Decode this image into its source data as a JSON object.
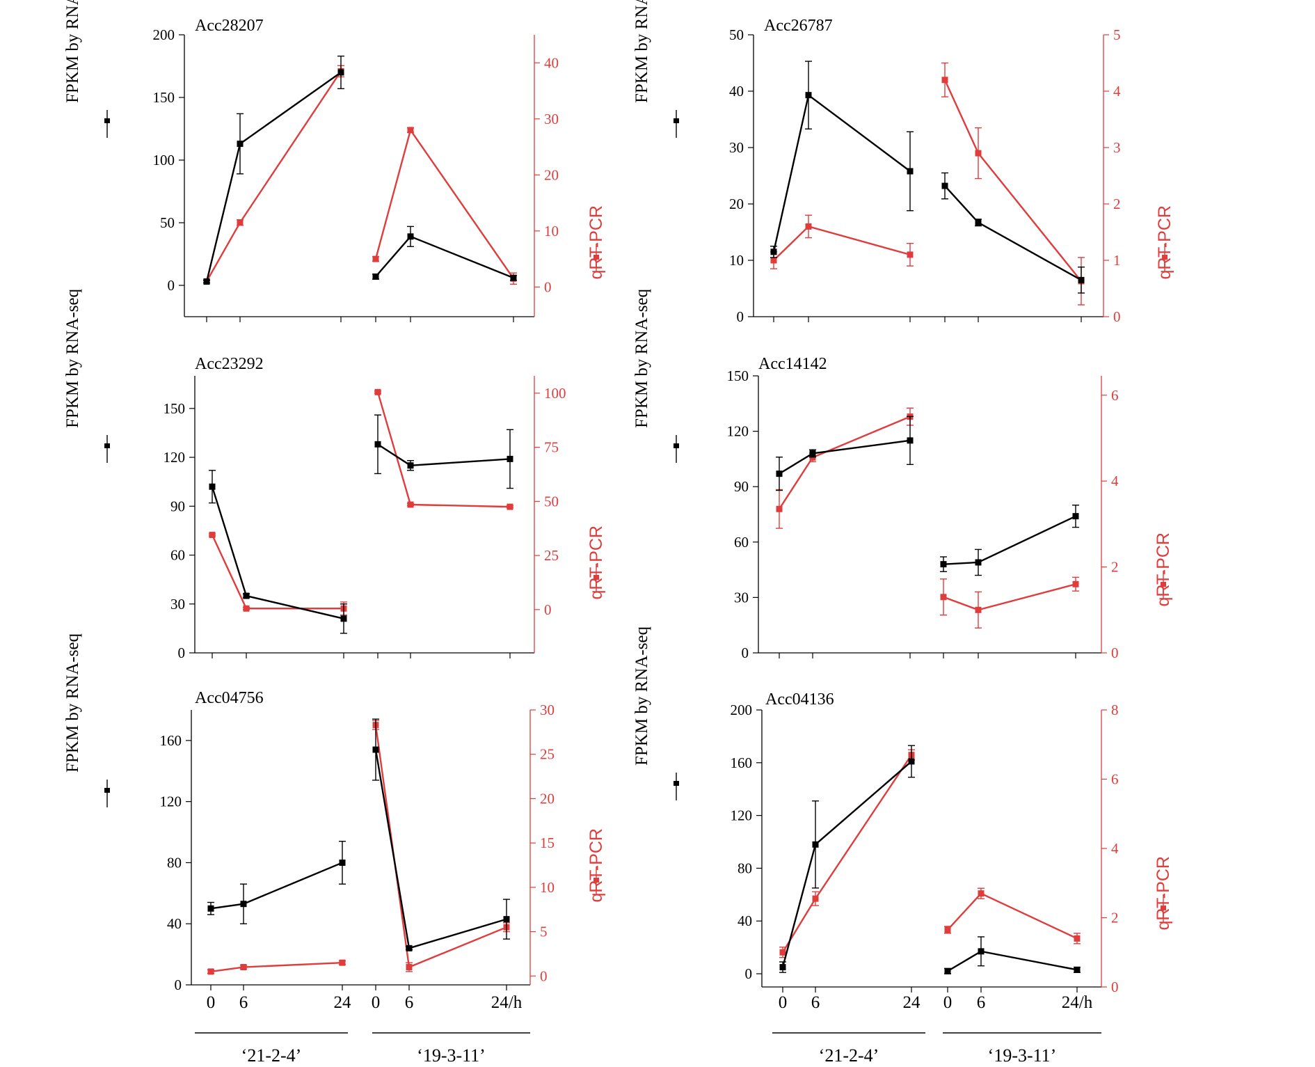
{
  "chart_data": [
    {
      "type": "line",
      "title": "Acc28207",
      "ylabel_left": "FPKM by RNA-seq",
      "ylabel_right": "qRT-PCR",
      "y_left_ticks": [
        "0",
        "50",
        "100",
        "150",
        "200"
      ],
      "y_right_ticks": [
        "0",
        "10",
        "20",
        "30",
        "40"
      ],
      "ylim_left": [
        -25,
        200
      ],
      "ylim_right": [
        -5.3,
        45
      ],
      "groups": [
        "‘21-2-4’",
        "‘19-3-11’"
      ],
      "series": [
        {
          "name": "FPKM by RNA-seq",
          "color": "#000000",
          "axis": "left",
          "values": [
            [
              3,
              113,
              170
            ],
            [
              7,
              39,
              6
            ]
          ],
          "errors": [
            [
              1,
              24,
              13
            ],
            [
              2,
              8,
              2
            ]
          ]
        },
        {
          "name": "qRT-PCR",
          "color": "#e03c3c",
          "axis": "right",
          "values": [
            [
              1,
              11.5,
              38.5
            ],
            [
              5,
              28,
              1.5
            ]
          ],
          "errors": [
            [
              0.3,
              0.5,
              1
            ],
            [
              0.4,
              0.4,
              1
            ]
          ]
        }
      ]
    },
    {
      "type": "line",
      "title": "Acc26787",
      "ylabel_left": "FPKM by RNA-seq",
      "ylabel_right": "qRT-PCR",
      "y_left_ticks": [
        "0",
        "10",
        "20",
        "30",
        "40",
        "50"
      ],
      "y_right_ticks": [
        "0",
        "1",
        "2",
        "3",
        "4",
        "5"
      ],
      "ylim_left": [
        0,
        50
      ],
      "ylim_right": [
        0,
        5
      ],
      "groups": [
        "‘21-2-4’",
        "‘19-3-11’"
      ],
      "series": [
        {
          "name": "FPKM by RNA-seq",
          "color": "#000000",
          "axis": "left",
          "values": [
            [
              11.5,
              39.3,
              25.8
            ],
            [
              23.2,
              16.7,
              6.5
            ]
          ],
          "errors": [
            [
              1,
              6,
              7
            ],
            [
              2.3,
              0.6,
              2.3
            ]
          ]
        },
        {
          "name": "qRT-PCR",
          "color": "#e03c3c",
          "axis": "right",
          "values": [
            [
              1.0,
              1.6,
              1.1
            ],
            [
              4.2,
              2.9,
              0.63
            ]
          ],
          "errors": [
            [
              0.15,
              0.2,
              0.2
            ],
            [
              0.3,
              0.45,
              0.42
            ]
          ]
        }
      ]
    },
    {
      "type": "line",
      "title": "Acc23292",
      "ylabel_left": "FPKM by RNA-seq",
      "ylabel_right": "qRT-PCR",
      "y_left_ticks": [
        "0",
        "30",
        "60",
        "90",
        "120",
        "150"
      ],
      "y_right_ticks": [
        "0",
        "25",
        "50",
        "75",
        "100"
      ],
      "ylim_left": [
        0,
        170
      ],
      "ylim_right": [
        -20,
        108
      ],
      "groups": [
        "‘21-2-4’",
        "‘19-3-11’"
      ],
      "series": [
        {
          "name": "FPKM by RNA-seq",
          "color": "#000000",
          "axis": "left",
          "values": [
            [
              102,
              35,
              21
            ],
            [
              128,
              115,
              119
            ]
          ],
          "errors": [
            [
              10,
              1.2,
              9
            ],
            [
              18,
              3,
              18
            ]
          ]
        },
        {
          "name": "qRT-PCR",
          "color": "#e03c3c",
          "axis": "right",
          "values": [
            [
              34.5,
              0.5,
              0.5
            ],
            [
              100.5,
              48.5,
              47.5
            ]
          ],
          "errors": [
            [
              0.5,
              0.5,
              3
            ],
            [
              0.5,
              0.5,
              0.5
            ]
          ]
        }
      ]
    },
    {
      "type": "line",
      "title": "Acc14142",
      "ylabel_left": "FPKM by RNA-seq",
      "ylabel_right": "qRT-PCR",
      "y_left_ticks": [
        "0",
        "30",
        "60",
        "90",
        "120",
        "150"
      ],
      "y_right_ticks": [
        "0",
        "2",
        "4",
        "6"
      ],
      "ylim_left": [
        0,
        150
      ],
      "ylim_right": [
        0,
        6.45
      ],
      "groups": [
        "‘21-2-4’",
        "‘19-3-11’"
      ],
      "series": [
        {
          "name": "FPKM by RNA-seq",
          "color": "#000000",
          "axis": "left",
          "values": [
            [
              97,
              108,
              115
            ],
            [
              48,
              49,
              74
            ]
          ],
          "errors": [
            [
              9,
              2,
              13
            ],
            [
              4,
              7,
              6
            ]
          ]
        },
        {
          "name": "qRT-PCR",
          "color": "#e03c3c",
          "axis": "right",
          "values": [
            [
              3.35,
              4.55,
              5.5
            ],
            [
              1.3,
              1.0,
              1.6
            ]
          ],
          "errors": [
            [
              0.45,
              0.1,
              0.2
            ],
            [
              0.42,
              0.42,
              0.16
            ]
          ]
        }
      ]
    },
    {
      "type": "line",
      "title": "Acc04756",
      "ylabel_left": "FPKM by RNA-seq",
      "ylabel_right": "qRT-PCR",
      "y_left_ticks": [
        "0",
        "40",
        "80",
        "120",
        "160"
      ],
      "y_right_ticks": [
        "0",
        "5",
        "10",
        "15",
        "20",
        "25",
        "30"
      ],
      "ylim_left": [
        0,
        180
      ],
      "ylim_right": [
        -1,
        30
      ],
      "groups": [
        "‘21-2-4’",
        "‘19-3-11’"
      ],
      "series": [
        {
          "name": "FPKM by RNA-seq",
          "color": "#000000",
          "axis": "left",
          "values": [
            [
              50,
              53,
              80
            ],
            [
              154,
              24,
              43
            ]
          ],
          "errors": [
            [
              4,
              13,
              14
            ],
            [
              20,
              1,
              13
            ]
          ]
        },
        {
          "name": "qRT-PCR",
          "color": "#e03c3c",
          "axis": "right",
          "values": [
            [
              0.5,
              1.0,
              1.5
            ],
            [
              28.3,
              1.0,
              5.5
            ]
          ],
          "errors": [
            [
              0.2,
              0.2,
              0.2
            ],
            [
              0.5,
              0.5,
              0.5
            ]
          ]
        }
      ]
    },
    {
      "type": "line",
      "title": "Acc04136",
      "ylabel_left": "FPKM by RNA-seq",
      "ylabel_right": "qRT-PCR",
      "y_left_ticks": [
        "0",
        "40",
        "80",
        "120",
        "160",
        "200"
      ],
      "y_right_ticks": [
        "0",
        "2",
        "4",
        "6",
        "8"
      ],
      "ylim_left": [
        -10,
        200
      ],
      "ylim_right": [
        0,
        8
      ],
      "groups": [
        "‘21-2-4’",
        "‘19-3-11’"
      ],
      "series": [
        {
          "name": "FPKM by RNA-seq",
          "color": "#000000",
          "axis": "left",
          "values": [
            [
              5,
              98,
              161
            ],
            [
              2,
              17,
              3
            ]
          ],
          "errors": [
            [
              4,
              33,
              12
            ],
            [
              2,
              11,
              2
            ]
          ]
        },
        {
          "name": "qRT-PCR",
          "color": "#e03c3c",
          "axis": "right",
          "values": [
            [
              1.0,
              2.55,
              6.7
            ],
            [
              1.65,
              2.7,
              1.4
            ]
          ],
          "errors": [
            [
              0.15,
              0.2,
              0.15
            ],
            [
              0.1,
              0.15,
              0.15
            ]
          ]
        }
      ]
    }
  ],
  "x_ticks": {
    "left_group": [
      "0",
      "6",
      "24"
    ],
    "right_group": [
      "0",
      "6",
      "24/h"
    ]
  },
  "group_labels": [
    "‘21-2-4’",
    "‘19-3-11’"
  ]
}
